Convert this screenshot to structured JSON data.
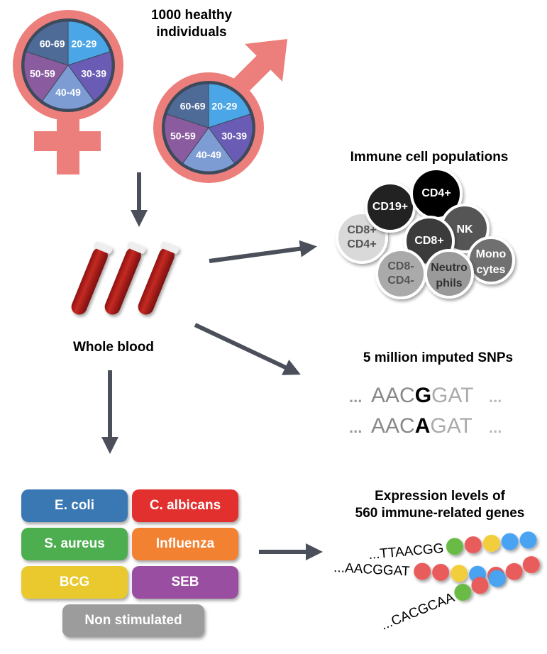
{
  "cohort": {
    "title_line1": "1000 healthy",
    "title_line2": "individuals",
    "age_groups": [
      "20-29",
      "30-39",
      "40-49",
      "50-59",
      "60-69"
    ]
  },
  "sample": {
    "label": "Whole blood"
  },
  "immune": {
    "title": "Immune cell populations",
    "cells": [
      {
        "label": "CD8+ CD4+",
        "l1": "CD8",
        "s1": "+",
        "l2": "CD4",
        "s2": "+"
      },
      {
        "label": "CD19+",
        "l1": "CD19",
        "s1": "+"
      },
      {
        "label": "CD4+",
        "l1": "CD4",
        "s1": "+"
      },
      {
        "label": "NK",
        "l1": "NK"
      },
      {
        "label": "CD8+",
        "l1": "CD8",
        "s1": "+"
      },
      {
        "label": "CD8- CD4-",
        "l1": "CD8",
        "s1": "-",
        "l2": "CD4",
        "s2": "-"
      },
      {
        "label": "Monocytes",
        "l1": "Mono",
        "l2": "cytes"
      },
      {
        "label": "Neutrophils",
        "l1": "Neutro",
        "l2": "phils"
      }
    ]
  },
  "snps": {
    "title": "5 million imputed SNPs",
    "seq1": {
      "pre": "AAC",
      "snp": "G",
      "post": "GAT"
    },
    "seq2": {
      "pre": "AAC",
      "snp": "A",
      "post": "GAT"
    },
    "ellipsis": "..."
  },
  "stimuli": [
    {
      "label": "E. coli",
      "color": "#3a78b4"
    },
    {
      "label": "C. albicans",
      "color": "#e2302f"
    },
    {
      "label": "S. aureus",
      "color": "#4cae4f"
    },
    {
      "label": "Influenza",
      "color": "#f28132"
    },
    {
      "label": "BCG",
      "color": "#e9c92e"
    },
    {
      "label": "SEB",
      "color": "#9a4ea1"
    },
    {
      "label": "Non stimulated",
      "color": "#9c9c9c"
    }
  ],
  "expression": {
    "title_line1": "Expression levels of",
    "title_line2": "560 immune-related genes",
    "strands": [
      "...TTAACGG",
      "...AACGGAT",
      "...CACGCAA"
    ]
  }
}
